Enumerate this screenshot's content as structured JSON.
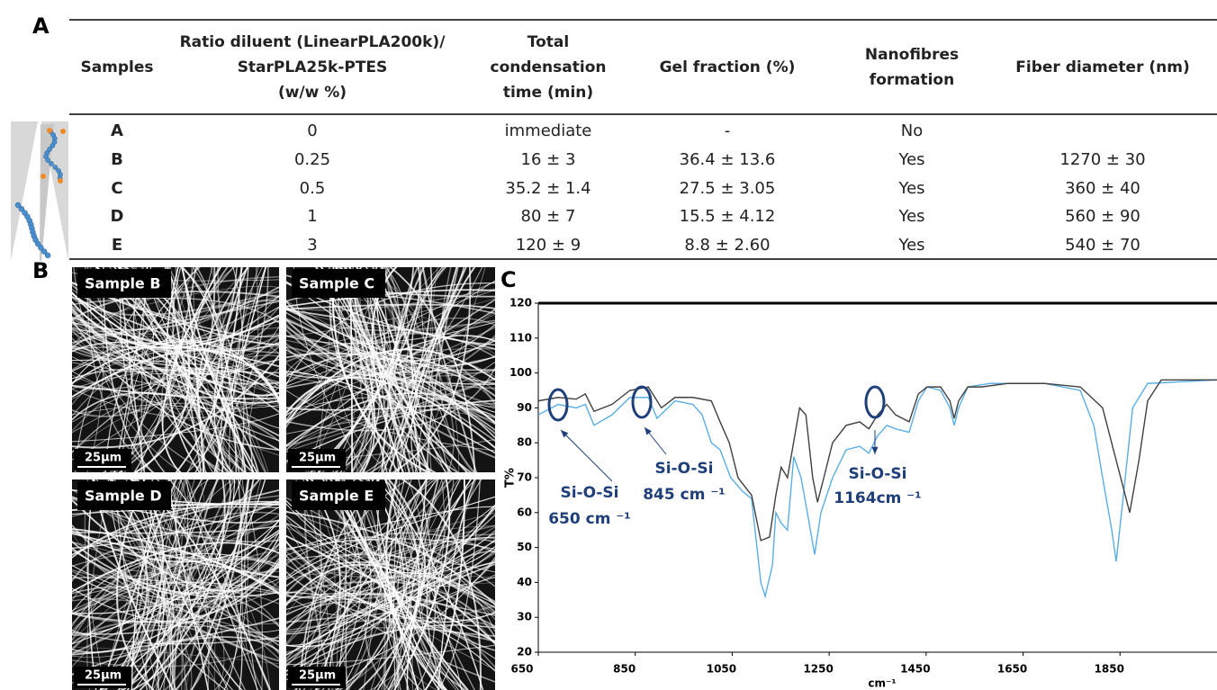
{
  "panel_labels": [
    "A",
    "B",
    "C"
  ],
  "table": {
    "headers": [
      [
        "Samples"
      ],
      [
        "Ratio diluent (LinearPLA200k)/",
        "StarPLA25k-PTES",
        "(w/w %)"
      ],
      [
        "Total",
        "condensation",
        "time (min)"
      ],
      [
        "Gel fraction (%)"
      ],
      [
        "Nanofibres",
        "formation"
      ],
      [
        "Fiber diameter (nm)"
      ]
    ],
    "rows": [
      [
        "A",
        "0",
        "immediate",
        "-",
        "No"
      ],
      [
        "B",
        "0.25",
        "16 ± 3",
        "36.4 ± 13.6",
        "Yes",
        "1270 ± 30"
      ],
      [
        "C",
        "0.5",
        "35.2 ± 1.4",
        "27.5 ± 3.05",
        "Yes",
        "360 ± 40"
      ],
      [
        "D",
        "1",
        "80 ± 7",
        "15.5 ± 4.12",
        "Yes",
        "560 ± 90"
      ],
      [
        "E",
        "3",
        "120 ± 9",
        "8.8 ± 2.60",
        "Yes",
        "540 ± 70"
      ]
    ]
  },
  "sem_images": [
    {
      "label": "Sample B",
      "scale": "25µm"
    },
    {
      "label": "Sample C",
      "scale": "25µm"
    },
    {
      "label": "Sample D",
      "scale": "25µm"
    },
    {
      "label": "Sample E",
      "scale": "25µm"
    }
  ],
  "chart_data": {
    "type": "line",
    "x_label": "cm⁻¹",
    "y_label": "T%",
    "xlim": [
      650,
      2050
    ],
    "ylim": [
      20,
      120
    ],
    "xticks": [
      650,
      850,
      1050,
      1250,
      1450,
      1650,
      1850
    ],
    "yticks": [
      20,
      30,
      40,
      50,
      60,
      70,
      80,
      90,
      100,
      110,
      120
    ],
    "series": [
      {
        "color": "#404040",
        "x": [
          650,
          691,
          728,
          747,
          765,
          802,
          839,
          877,
          904,
          932,
          969,
          1007,
          1025,
          1044,
          1062,
          1090,
          1109,
          1127,
          1140,
          1151,
          1164,
          1174,
          1189,
          1202,
          1216,
          1226,
          1239,
          1257,
          1285,
          1313,
          1332,
          1350,
          1369,
          1387,
          1415,
          1434,
          1452,
          1480,
          1499,
          1508,
          1517,
          1536,
          1564,
          1619,
          1694,
          1768,
          1814,
          1842,
          1870,
          1889,
          1907,
          1935,
          2050
        ],
        "values": [
          92,
          93,
          92.5,
          94,
          89,
          91,
          95,
          96,
          90,
          93,
          93,
          92,
          86,
          80,
          70,
          65,
          52,
          53,
          65,
          73,
          70,
          78,
          90,
          88,
          70,
          63,
          70,
          80,
          85,
          86,
          84,
          88,
          91,
          88,
          86,
          94,
          96,
          96,
          92,
          87,
          92,
          96,
          96,
          97,
          97,
          96,
          90,
          75,
          60,
          75,
          92,
          98,
          98
        ]
      },
      {
        "color": "#5aaee6",
        "x": [
          650,
          691,
          728,
          747,
          765,
          802,
          839,
          877,
          895,
          932,
          969,
          988,
          1007,
          1025,
          1047,
          1072,
          1090,
          1109,
          1118,
          1133,
          1140,
          1151,
          1164,
          1177,
          1192,
          1205,
          1220,
          1233,
          1257,
          1285,
          1313,
          1332,
          1350,
          1369,
          1387,
          1415,
          1434,
          1452,
          1480,
          1499,
          1508,
          1517,
          1536,
          1582,
          1694,
          1768,
          1796,
          1814,
          1833,
          1842,
          1857,
          1876,
          1907,
          2050
        ],
        "values": [
          88,
          91,
          90,
          91,
          85,
          88,
          93,
          93,
          87,
          92,
          91,
          88,
          80,
          78,
          70,
          66,
          64,
          40,
          36,
          45,
          60,
          57,
          55,
          76,
          70,
          60,
          48,
          60,
          70,
          78,
          79,
          77,
          82,
          85,
          84,
          83,
          92,
          96,
          95,
          90,
          85,
          90,
          96,
          97,
          97,
          95,
          85,
          70,
          55,
          46,
          65,
          90,
          97,
          98
        ]
      }
    ],
    "annotations": [
      [
        "Si-O-Si",
        "650 cm ⁻¹"
      ],
      [
        "Si-O-Si",
        "845 cm ⁻¹"
      ],
      [
        "Si-O-Si",
        "1164cm ⁻¹"
      ]
    ]
  }
}
